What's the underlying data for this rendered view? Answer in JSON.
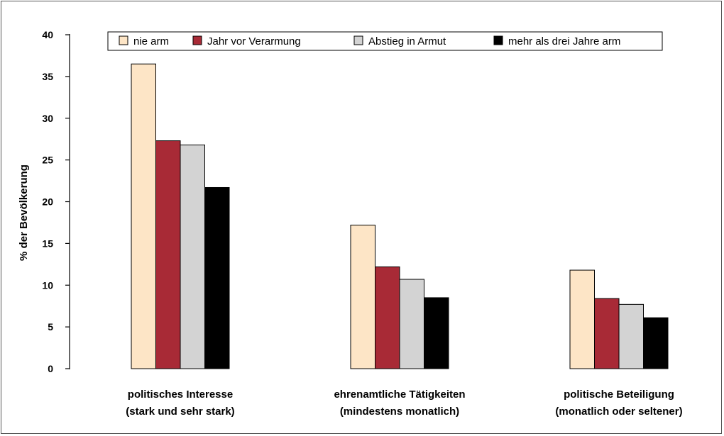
{
  "chart_data": {
    "type": "bar",
    "title": "",
    "xlabel": "",
    "ylabel": "% der Bevölkerung",
    "ylim": [
      0,
      40
    ],
    "yticks": [
      0,
      5,
      10,
      15,
      20,
      25,
      30,
      35,
      40
    ],
    "grid": false,
    "legend_position": "top",
    "categories": [
      [
        "politisches Interesse",
        "(stark und sehr stark)"
      ],
      [
        "ehrenamtliche Tätigkeiten",
        "(mindestens monatlich)"
      ],
      [
        "politische Beteiligung",
        "(monatlich oder seltener)"
      ]
    ],
    "series": [
      {
        "name": "nie arm",
        "color": "#fde5c6",
        "values": [
          36.5,
          17.2,
          11.8
        ]
      },
      {
        "name": "Jahr vor Verarmung",
        "color": "#a82a36",
        "values": [
          27.3,
          12.2,
          8.4
        ]
      },
      {
        "name": "Abstieg in Armut",
        "color": "#d3d3d3",
        "values": [
          26.8,
          10.7,
          7.7
        ]
      },
      {
        "name": "mehr als drei Jahre arm",
        "color": "#000000",
        "values": [
          21.7,
          8.5,
          6.1
        ]
      }
    ]
  }
}
